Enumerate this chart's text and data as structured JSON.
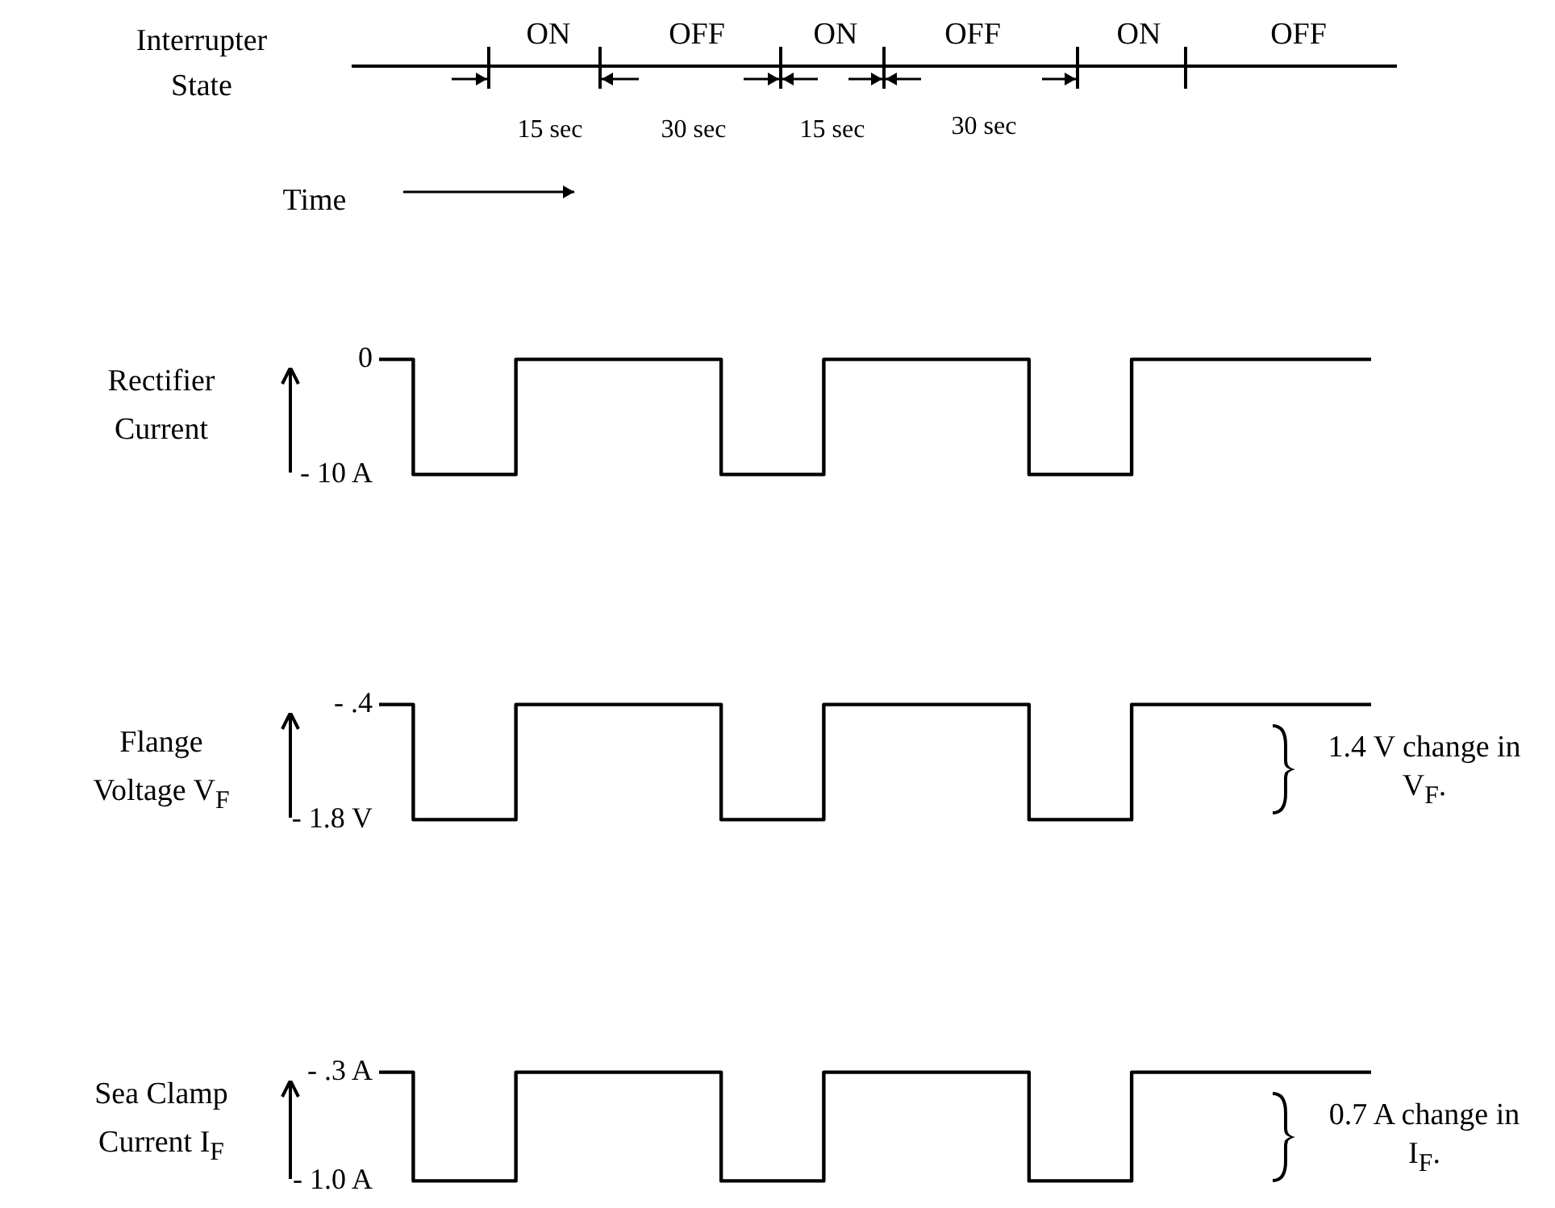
{
  "chart_data": [
    {
      "type": "other",
      "title": "Interrupter State",
      "annotations": [
        "ON",
        "OFF",
        "ON",
        "OFF",
        "ON",
        "OFF",
        "15 sec",
        "30 sec",
        "15 sec",
        "30 sec",
        "Time"
      ]
    },
    {
      "type": "step",
      "ylabel": "Rectifier Current",
      "categories": [
        null,
        null,
        null,
        null,
        null,
        null,
        null,
        null,
        null,
        null,
        null,
        null,
        null,
        null,
        null,
        null,
        null,
        null,
        null,
        null,
        null,
        null,
        null,
        null,
        null,
        null,
        null,
        null,
        null,
        null
      ],
      "series": [
        {
          "color": "#000000",
          "values": [
            0,
            0,
            -10,
            -10,
            -10,
            0,
            0,
            0,
            0,
            0,
            0,
            -10,
            -10,
            -10,
            0,
            0,
            0,
            0,
            0,
            0,
            -10,
            -10,
            -10,
            0,
            0,
            0,
            0,
            0,
            0,
            0
          ]
        }
      ],
      "ylim": [
        -10,
        0
      ],
      "yticks": [
        {
          "value": -10,
          "label": "- 10 A"
        },
        {
          "value": 0,
          "label": "0"
        }
      ],
      "tick_labels": "y",
      "marker": "none"
    },
    {
      "type": "step",
      "ylabel": "Flange Voltage V$_{F}$",
      "categories": [
        null,
        null,
        null,
        null,
        null,
        null,
        null,
        null,
        null,
        null,
        null,
        null,
        null,
        null,
        null,
        null,
        null,
        null,
        null,
        null,
        null,
        null,
        null,
        null,
        null,
        null,
        null,
        null,
        null,
        null
      ],
      "series": [
        {
          "color": "#000000",
          "values": [
            -0.4,
            -0.4,
            -1.8,
            -1.8,
            -1.8,
            -0.4,
            -0.4,
            -0.4,
            -0.4,
            -0.4,
            -0.4,
            -1.8,
            -1.8,
            -1.8,
            -0.4,
            -0.4,
            -0.4,
            -0.4,
            -0.4,
            -0.4,
            -1.8,
            -1.8,
            -1.8,
            -0.4,
            -0.4,
            -0.4,
            -0.4,
            -0.4,
            -0.4,
            -0.4
          ]
        }
      ],
      "ylim": [
        -1.8,
        -0.4
      ],
      "yticks": [
        {
          "value": -1.8,
          "label": "- 1.8 V"
        },
        {
          "value": -0.4,
          "label": "- .4"
        }
      ],
      "tick_labels": "y",
      "marker": "none",
      "annotations": [
        "1.4 V change in V$_{F}$."
      ]
    },
    {
      "type": "step",
      "ylabel": "Sea Clamp Current I$_{F}$",
      "categories": [
        null,
        null,
        null,
        null,
        null,
        null,
        null,
        null,
        null,
        null,
        null,
        null,
        null,
        null,
        null,
        null,
        null,
        null,
        null,
        null,
        null,
        null,
        null,
        null,
        null,
        null,
        null,
        null,
        null,
        null
      ],
      "series": [
        {
          "color": "#000000",
          "values": [
            -0.3,
            -0.3,
            -1.0,
            -1.0,
            -1.0,
            -0.3,
            -0.3,
            -0.3,
            -0.3,
            -0.3,
            -0.3,
            -1.0,
            -1.0,
            -1.0,
            -0.3,
            -0.3,
            -0.3,
            -0.3,
            -0.3,
            -0.3,
            -1.0,
            -1.0,
            -1.0,
            -0.3,
            -0.3,
            -0.3,
            -0.3,
            -0.3,
            -0.3,
            -0.3
          ]
        }
      ],
      "ylim": [
        -1.0,
        -0.3
      ],
      "yticks": [
        {
          "value": -1.0,
          "label": "- 1.0 A"
        },
        {
          "value": -0.3,
          "label": "- .3 A"
        }
      ],
      "tick_labels": "y",
      "marker": "none",
      "annotations": [
        "0.7 A change in I$_{F}$."
      ]
    }
  ]
}
